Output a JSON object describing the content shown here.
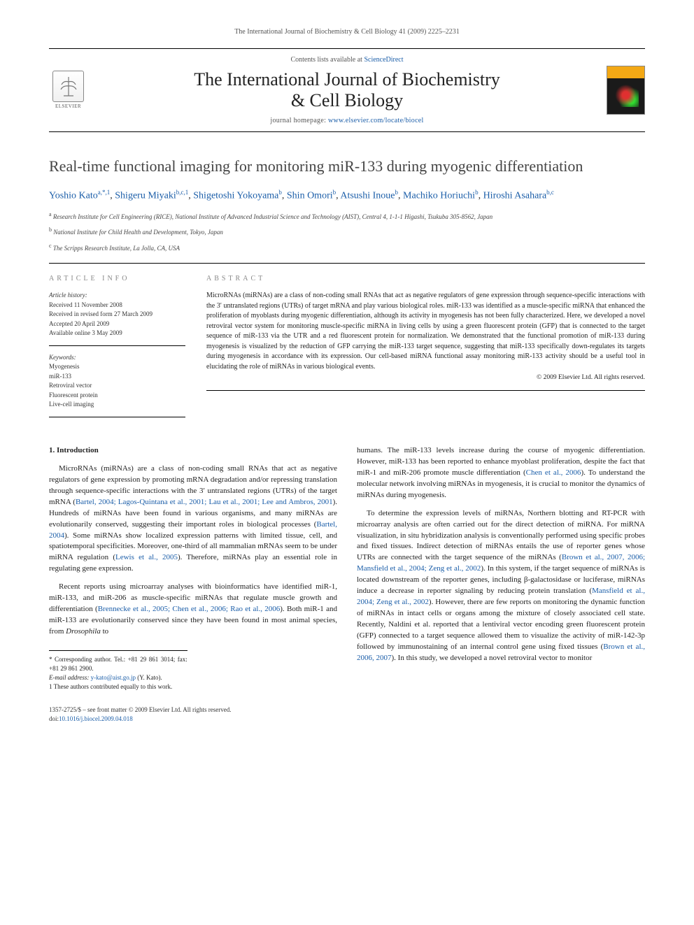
{
  "running_header": "The International Journal of Biochemistry & Cell Biology 41 (2009) 2225–2231",
  "masthead": {
    "contents_prefix": "Contents lists available at ",
    "contents_link": "ScienceDirect",
    "journal_name_line1": "The International Journal of Biochemistry",
    "journal_name_line2": "& Cell Biology",
    "homepage_prefix": "journal homepage: ",
    "homepage_url": "www.elsevier.com/locate/biocel",
    "publisher_label": "ELSEVIER"
  },
  "article": {
    "title": "Real-time functional imaging for monitoring miR-133 during myogenic differentiation",
    "authors_html": "Yoshio Kato<sup>a,*,1</sup>, Shigeru Miyaki<sup>b,c,1</sup>, Shigetoshi Yokoyama<sup>b</sup>, Shin Omori<sup>b</sup>, Atsushi Inoue<sup>b</sup>, Machiko Horiuchi<sup>b</sup>, Hiroshi Asahara<sup>b,c</sup>",
    "affiliations": [
      "a Research Institute for Cell Engineering (RICE), National Institute of Advanced Industrial Science and Technology (AIST), Central 4, 1-1-1 Higashi, Tsukuba 305-8562, Japan",
      "b National Institute for Child Health and Development, Tokyo, Japan",
      "c The Scripps Research Institute, La Jolla, CA, USA"
    ]
  },
  "article_info": {
    "heading": "ARTICLE INFO",
    "history_label": "Article history:",
    "history": [
      "Received 11 November 2008",
      "Received in revised form 27 March 2009",
      "Accepted 20 April 2009",
      "Available online 3 May 2009"
    ],
    "keywords_label": "Keywords:",
    "keywords": [
      "Myogenesis",
      "miR-133",
      "Retroviral vector",
      "Fluorescent protein",
      "Live-cell imaging"
    ]
  },
  "abstract": {
    "heading": "ABSTRACT",
    "text": "MicroRNAs (miRNAs) are a class of non-coding small RNAs that act as negative regulators of gene expression through sequence-specific interactions with the 3′ untranslated regions (UTRs) of target mRNA and play various biological roles. miR-133 was identified as a muscle-specific miRNA that enhanced the proliferation of myoblasts during myogenic differentiation, although its activity in myogenesis has not been fully characterized. Here, we developed a novel retroviral vector system for monitoring muscle-specific miRNA in living cells by using a green fluorescent protein (GFP) that is connected to the target sequence of miR-133 via the UTR and a red fluorescent protein for normalization. We demonstrated that the functional promotion of miR-133 during myogenesis is visualized by the reduction of GFP carrying the miR-133 target sequence, suggesting that miR-133 specifically down-regulates its targets during myogenesis in accordance with its expression. Our cell-based miRNA functional assay monitoring miR-133 activity should be a useful tool in elucidating the role of miRNAs in various biological events.",
    "copyright": "© 2009 Elsevier Ltd. All rights reserved."
  },
  "body": {
    "section_heading": "1. Introduction",
    "col1_p1": "MicroRNAs (miRNAs) are a class of non-coding small RNAs that act as negative regulators of gene expression by promoting mRNA degradation and/or repressing translation through sequence-specific interactions with the 3′ untranslated regions (UTRs) of the target mRNA (Bartel, 2004; Lagos-Quintana et al., 2001; Lau et al., 2001; Lee and Ambros, 2001). Hundreds of miRNAs have been found in various organisms, and many miRNAs are evolutionarily conserved, suggesting their important roles in biological processes (Bartel, 2004). Some miRNAs show localized expression patterns with limited tissue, cell, and spatiotemporal specificities. Moreover, one-third of all mammalian mRNAs seem to be under miRNA regulation (Lewis et al., 2005). Therefore, miRNAs play an essential role in regulating gene expression.",
    "col1_p2": "Recent reports using microarray analyses with bioinformatics have identified miR-1, miR-133, and miR-206 as muscle-specific miRNAs that regulate muscle growth and differentiation (Brennecke et al., 2005; Chen et al., 2006; Rao et al., 2006). Both miR-1 and miR-133 are evolutionarily conserved since they have been found in most animal species, from Drosophila to",
    "col2_p1": "humans. The miR-133 levels increase during the course of myogenic differentiation. However, miR-133 has been reported to enhance myoblast proliferation, despite the fact that miR-1 and miR-206 promote muscle differentiation (Chen et al., 2006). To understand the molecular network involving miRNAs in myogenesis, it is crucial to monitor the dynamics of miRNAs during myogenesis.",
    "col2_p2": "To determine the expression levels of miRNAs, Northern blotting and RT-PCR with microarray analysis are often carried out for the direct detection of miRNA. For miRNA visualization, in situ hybridization analysis is conventionally performed using specific probes and fixed tissues. Indirect detection of miRNAs entails the use of reporter genes whose UTRs are connected with the target sequence of the miRNAs (Brown et al., 2007, 2006; Mansfield et al., 2004; Zeng et al., 2002). In this system, if the target sequence of miRNAs is located downstream of the reporter genes, including β-galactosidase or luciferase, miRNAs induce a decrease in reporter signaling by reducing protein translation (Mansfield et al., 2004; Zeng et al., 2002). However, there are few reports on monitoring the dynamic function of miRNAs in intact cells or organs among the mixture of closely associated cell state. Recently, Naldini et al. reported that a lentiviral vector encoding green fluorescent protein (GFP) connected to a target sequence allowed them to visualize the activity of miR-142-3p followed by immunostaining of an internal control gene using fixed tissues (Brown et al., 2006, 2007). In this study, we developed a novel retroviral vector to monitor"
  },
  "footnotes": {
    "corresponding": "* Corresponding author. Tel.: +81 29 861 3014; fax: +81 29 861 2900.",
    "email_label": "E-mail address: ",
    "email": "y-kato@aist.go.jp",
    "email_suffix": " (Y. Kato).",
    "equal": "1 These authors contributed equally to this work."
  },
  "bottom": {
    "issn_line": "1357-2725/$ – see front matter © 2009 Elsevier Ltd. All rights reserved.",
    "doi_label": "doi:",
    "doi": "10.1016/j.biocel.2009.04.018"
  },
  "colors": {
    "link": "#1a5da8",
    "text": "#222222",
    "muted": "#888888"
  }
}
